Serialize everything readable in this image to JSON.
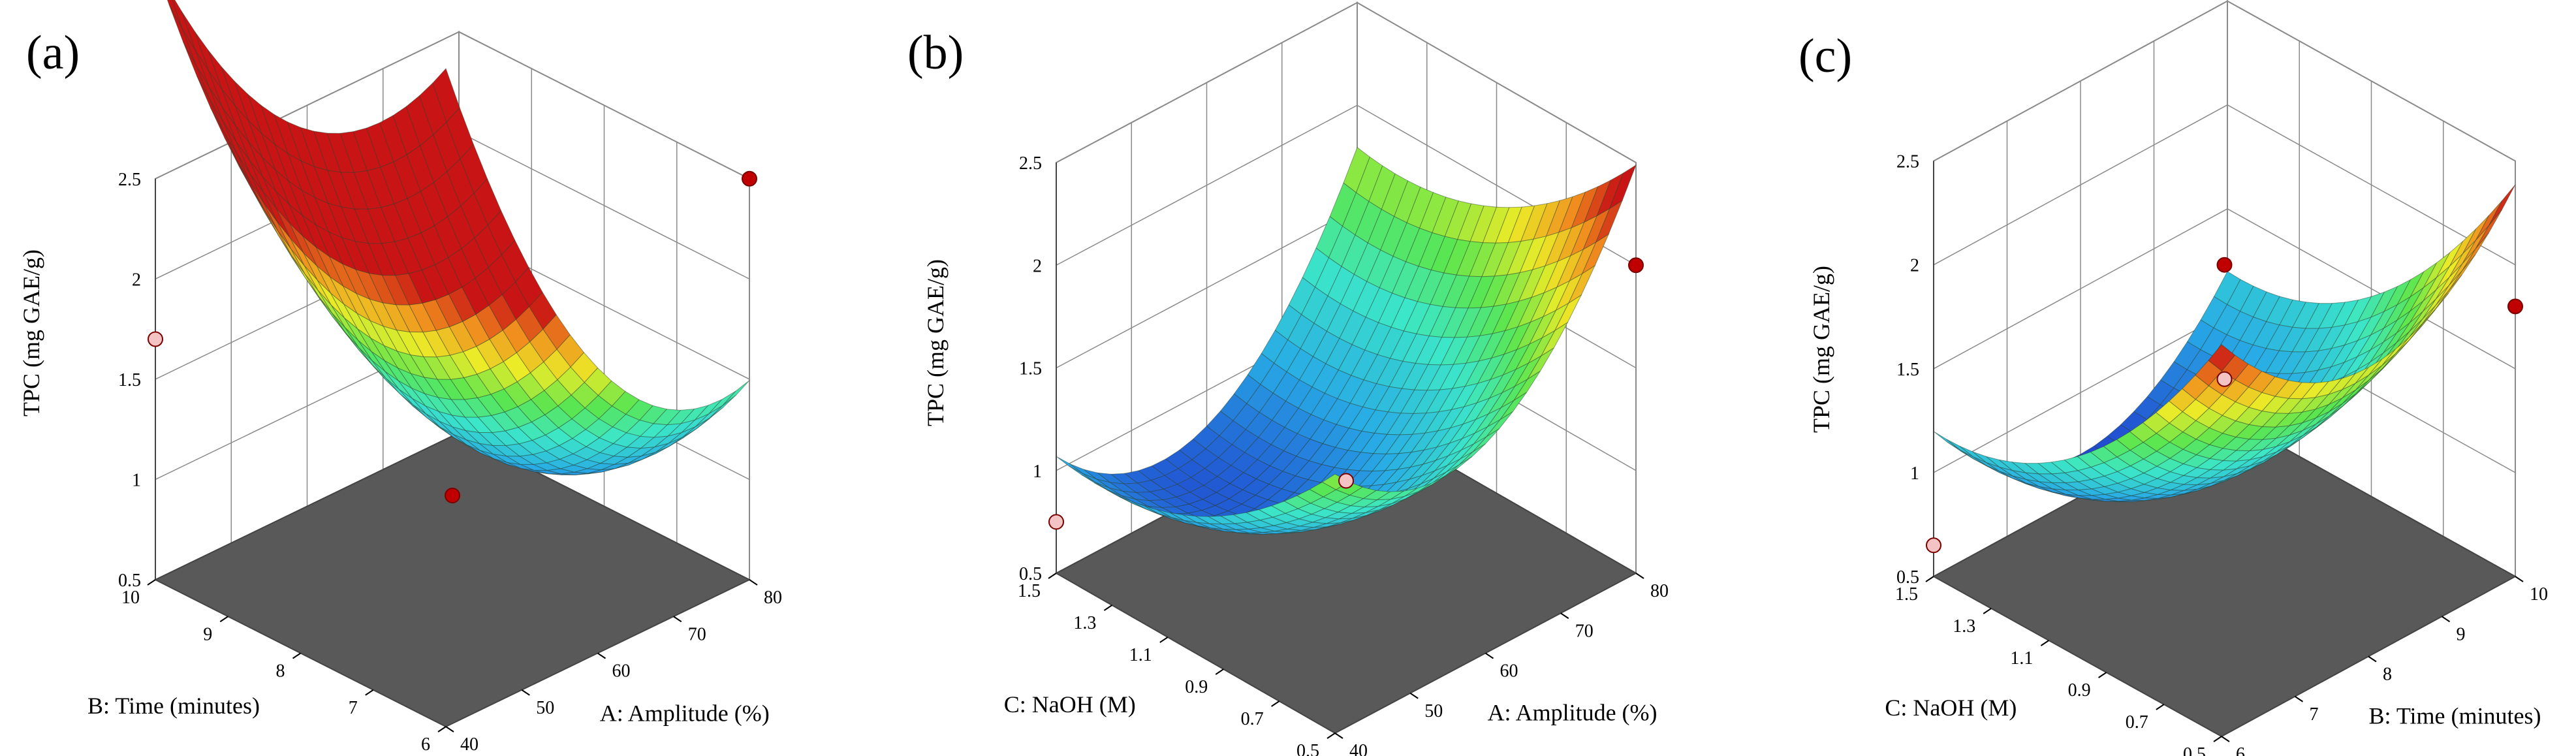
{
  "chart_data": [
    {
      "type": "surface3d",
      "panel_label": "(a)",
      "zlabel": "TPC (mg GAE/g)",
      "xlabel": "A: Amplitude (%)",
      "ylabel": "B: Time (minutes)",
      "x_ticks": [
        "40",
        "50",
        "60",
        "70",
        "80"
      ],
      "y_ticks": [
        "6",
        "7",
        "8",
        "9",
        "10"
      ],
      "z_ticks": [
        "0.5",
        "1",
        "1.5",
        "2",
        "2.5"
      ],
      "xlim": [
        40,
        80
      ],
      "ylim": [
        6,
        10
      ],
      "zlim": [
        0.5,
        2.5
      ],
      "surface": {
        "model": "quadratic",
        "center": [
          0.9,
          0.55
        ],
        "min": 0.8,
        "k_x": 1.3,
        "k_y": 1.0
      },
      "design_points": [
        {
          "x": 80,
          "y": 6,
          "z": 2.5,
          "above_surface": true
        },
        {
          "x": 60,
          "y": 8,
          "z": 0.92,
          "above_surface": true
        },
        {
          "x": 40,
          "y": 10,
          "z": 1.7,
          "above_surface": false
        }
      ]
    },
    {
      "type": "surface3d",
      "panel_label": "(b)",
      "zlabel": "TPC (mg GAE/g)",
      "xlabel": "A: Amplitude (%)",
      "ylabel": "C: NaOH  (M)",
      "x_ticks": [
        "40",
        "50",
        "60",
        "70",
        "80"
      ],
      "y_ticks": [
        "0.5",
        "0.7",
        "0.9",
        "1.1",
        "1.3",
        "1.5"
      ],
      "z_ticks": [
        "0.5",
        "1",
        "1.5",
        "2",
        "2.5"
      ],
      "xlim": [
        40,
        80
      ],
      "ylim": [
        0.5,
        1.5
      ],
      "zlim": [
        0.5,
        2.5
      ],
      "surface": {
        "model": "quadratic",
        "center": [
          0.35,
          0.85
        ],
        "min": 0.75,
        "k_x": 1.1,
        "k_y": 0.45
      },
      "design_points": [
        {
          "x": 80,
          "y": 0.5,
          "z": 2.0,
          "above_surface": true
        },
        {
          "x": 60,
          "y": 1.0,
          "z": 0.95,
          "above_surface": false
        },
        {
          "x": 40,
          "y": 1.5,
          "z": 0.75,
          "above_surface": false
        }
      ]
    },
    {
      "type": "surface3d",
      "panel_label": "(c)",
      "zlabel": "TPC (mg GAE/g)",
      "xlabel": "B: Time (minutes)",
      "ylabel": "C: NaOH  (M)",
      "x_ticks": [
        "6",
        "7",
        "8",
        "9",
        "10"
      ],
      "y_ticks": [
        "0.5",
        "0.7",
        "0.9",
        "1.1",
        "1.3",
        "1.5"
      ],
      "z_ticks": [
        "0.5",
        "1",
        "1.5",
        "2",
        "2.5"
      ],
      "xlim": [
        6,
        10
      ],
      "ylim": [
        0.5,
        1.5
      ],
      "zlim": [
        0.5,
        2.5
      ],
      "surface": {
        "model": "quadratic",
        "center": [
          0.5,
          0.95
        ],
        "min": 0.7,
        "k_x": 0.9,
        "k_y": 0.6
      },
      "design_points": [
        {
          "x": 10,
          "y": 0.5,
          "z": 1.8,
          "above_surface": true
        },
        {
          "x": 8,
          "y": 1.0,
          "z": 2.0,
          "above_surface": true
        },
        {
          "x": 8,
          "y": 1.0,
          "z": 1.45,
          "above_surface": false
        },
        {
          "x": 6,
          "y": 1.5,
          "z": 0.65,
          "above_surface": false
        }
      ]
    }
  ]
}
